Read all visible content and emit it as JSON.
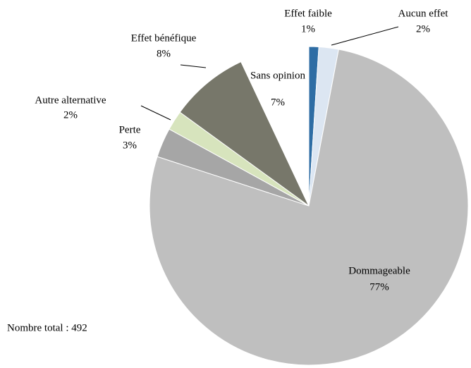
{
  "chart_data": {
    "type": "pie",
    "categories": [
      "Effet faible",
      "Aucun effet",
      "Dommageable",
      "Perte",
      "Autre alternative",
      "Effet bénéfique",
      "Sans opinion"
    ],
    "values": [
      1,
      2,
      77,
      3,
      2,
      8,
      7
    ],
    "value_labels": [
      "1%",
      "2%",
      "77%",
      "3%",
      "2%",
      "8%",
      "7%"
    ],
    "colors": [
      "#2e6da4",
      "#dce6f2",
      "#bfbfbf",
      "#a6a6a6",
      "#d7e4bd",
      "#77776a",
      "#ffffff"
    ],
    "annotation": "Nombre total : 492"
  }
}
